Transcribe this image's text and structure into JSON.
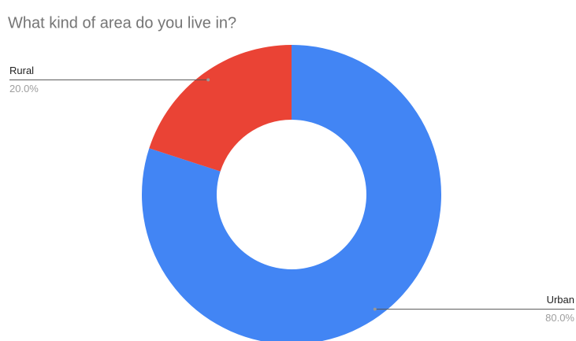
{
  "chart_data": {
    "type": "pie",
    "title": "What kind of area do you live in?",
    "categories": [
      "Urban",
      "Rural"
    ],
    "values": [
      80,
      20
    ],
    "value_labels": [
      "80.0%",
      "20.0%"
    ],
    "colors": [
      "#4285f4",
      "#ea4335"
    ],
    "donut": true
  }
}
